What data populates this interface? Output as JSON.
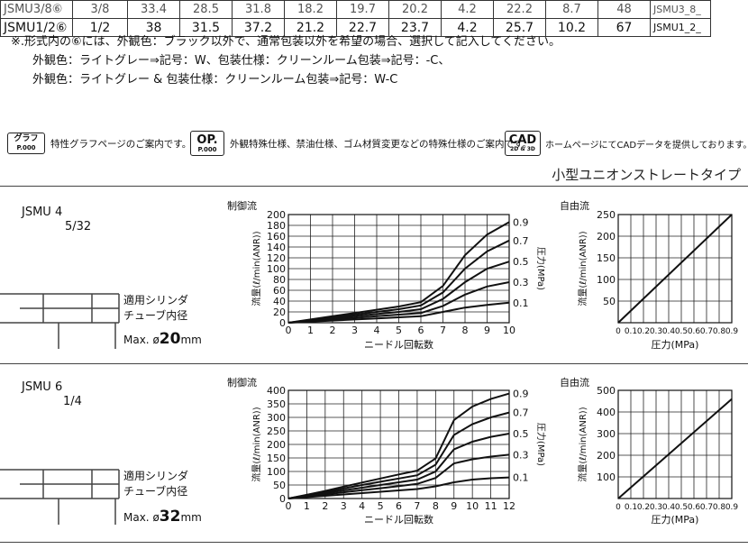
{
  "table": {
    "row_prev": [
      "JSMU3/8⑥",
      "3/8",
      "33.4",
      "28.5",
      "31.8",
      "18.2",
      "19.7",
      "20.2",
      "4.2",
      "22.2",
      "8.7",
      "48",
      "JSMU3_8_"
    ],
    "row_main": [
      "JSMU1/2⑥",
      "1/2",
      "38",
      "31.5",
      "37.2",
      "21.2",
      "22.7",
      "23.7",
      "4.2",
      "25.7",
      "10.2",
      "67",
      "JSMU1_2_"
    ]
  },
  "notes": {
    "line1": "※.形式内の⑥には、外観色：ブラック以外で、通常包装以外を希望の場合、選択して記入してください。",
    "line2": "外観色：ライトグレー⇒記号：W、包装仕様：クリーンルーム包装⇒記号：-C、",
    "line3": "外観色：ライトグレー & 包装仕様：クリーンルーム包装⇒記号：W-C"
  },
  "info_bar": {
    "graph_badge_top": "グラフ",
    "graph_badge_bottom": "P.000",
    "graph_text": "特性グラフページのご案内です。",
    "op_badge_top": "OP.",
    "op_badge_bottom": "P.000",
    "op_text": "外観特殊仕様、禁油仕様、ゴム材質変更などの特殊仕様のご案内です。",
    "cad_badge_top": "CAD",
    "cad_badge_bottom": "2D & 3D",
    "cad_text": "ホームページにてCADデータを提供しております。"
  },
  "section_title": "小型ユニオンストレートタイプ",
  "chart_data": [
    {
      "type": "line",
      "model": "JSMU 4",
      "size": "5/32",
      "tube_label_1": "適用シリンダ",
      "tube_label_2": "チューブ内径",
      "tube_max_prefix": "Max. ø",
      "tube_max_value": "20",
      "tube_max_unit": "mm",
      "title": "制御流",
      "xlabel": "ニードル回転数",
      "ylabel": "流量(ℓ/min(ANR))",
      "right_label": "圧力(MPa)",
      "xlim": [
        0,
        10
      ],
      "ylim": [
        0,
        200
      ],
      "x_ticks": [
        0,
        1,
        2,
        3,
        4,
        5,
        6,
        7,
        8,
        9,
        10
      ],
      "y_ticks": [
        0,
        20,
        40,
        60,
        80,
        100,
        120,
        140,
        160,
        180,
        200
      ],
      "x": [
        0,
        1,
        2,
        3,
        4,
        5,
        6,
        7,
        8,
        9,
        10
      ],
      "series": [
        {
          "name": "0.9",
          "values": [
            0,
            6,
            12,
            18,
            24,
            30,
            38,
            68,
            125,
            163,
            186
          ]
        },
        {
          "name": "0.7",
          "values": [
            0,
            5,
            10,
            15,
            20,
            25,
            32,
            56,
            100,
            132,
            152
          ]
        },
        {
          "name": "0.5",
          "values": [
            0,
            4,
            8,
            12,
            16,
            20,
            25,
            44,
            75,
            100,
            113
          ]
        },
        {
          "name": "0.3",
          "values": [
            0,
            3,
            6,
            9,
            12,
            15,
            18,
            31,
            52,
            67,
            75
          ]
        },
        {
          "name": "0.1",
          "values": [
            0,
            2,
            4,
            6,
            8,
            10,
            12,
            20,
            28,
            33,
            37
          ]
        }
      ]
    },
    {
      "type": "line",
      "title": "自由流",
      "xlabel": "圧力(MPa)",
      "ylabel": "流量(ℓ/min(ANR))",
      "xlim": [
        0,
        0.9
      ],
      "ylim": [
        0,
        250
      ],
      "x_tick_labels": [
        "0",
        "0.1",
        "0.2",
        "0.3",
        "0.4",
        "0.5",
        "0.6",
        "0.7",
        "0.8",
        "0.9"
      ],
      "y_ticks": [
        50,
        100,
        150,
        200,
        250
      ],
      "x": [
        0,
        0.9
      ],
      "series": [
        {
          "values": [
            0,
            250
          ]
        }
      ]
    },
    {
      "type": "line",
      "model": "JSMU 6",
      "size": "1/4",
      "tube_label_1": "適用シリンダ",
      "tube_label_2": "チューブ内径",
      "tube_max_prefix": "Max. ø",
      "tube_max_value": "32",
      "tube_max_unit": "mm",
      "title": "制御流",
      "xlabel": "ニードル回転数",
      "ylabel": "流量(ℓ/min(ANR))",
      "right_label": "圧力(MPa)",
      "xlim": [
        0,
        12
      ],
      "ylim": [
        0,
        400
      ],
      "x_ticks": [
        0,
        1,
        2,
        3,
        4,
        5,
        6,
        7,
        8,
        9,
        10,
        11,
        12
      ],
      "y_ticks": [
        0,
        50,
        100,
        150,
        200,
        250,
        300,
        350,
        400
      ],
      "x": [
        0,
        1,
        2,
        3,
        4,
        5,
        6,
        7,
        8,
        9,
        10,
        11,
        12
      ],
      "series": [
        {
          "name": "0.9",
          "values": [
            0,
            14,
            28,
            44,
            59,
            74,
            89,
            103,
            148,
            290,
            340,
            368,
            388
          ]
        },
        {
          "name": "0.7",
          "values": [
            0,
            12,
            24,
            37,
            50,
            62,
            74,
            86,
            125,
            235,
            275,
            300,
            318
          ]
        },
        {
          "name": "0.5",
          "values": [
            0,
            10,
            20,
            30,
            40,
            50,
            60,
            70,
            100,
            182,
            210,
            228,
            240
          ]
        },
        {
          "name": "0.3",
          "values": [
            0,
            8,
            15,
            23,
            31,
            38,
            46,
            54,
            76,
            130,
            145,
            155,
            162
          ]
        },
        {
          "name": "0.1",
          "values": [
            0,
            5,
            10,
            15,
            20,
            25,
            30,
            35,
            45,
            60,
            70,
            75,
            78
          ]
        }
      ]
    },
    {
      "type": "line",
      "title": "自由流",
      "xlabel": "圧力(MPa)",
      "ylabel": "流量(ℓ/min(ANR))",
      "xlim": [
        0,
        0.9
      ],
      "ylim": [
        0,
        500
      ],
      "x_tick_labels": [
        "0",
        "0.1",
        "0.2",
        "0.3",
        "0.4",
        "0.5",
        "0.6",
        "0.7",
        "0.8",
        "0.9"
      ],
      "y_ticks": [
        100,
        200,
        300,
        400,
        500
      ],
      "x": [
        0,
        0.9
      ],
      "series": [
        {
          "values": [
            0,
            460
          ]
        }
      ]
    }
  ]
}
